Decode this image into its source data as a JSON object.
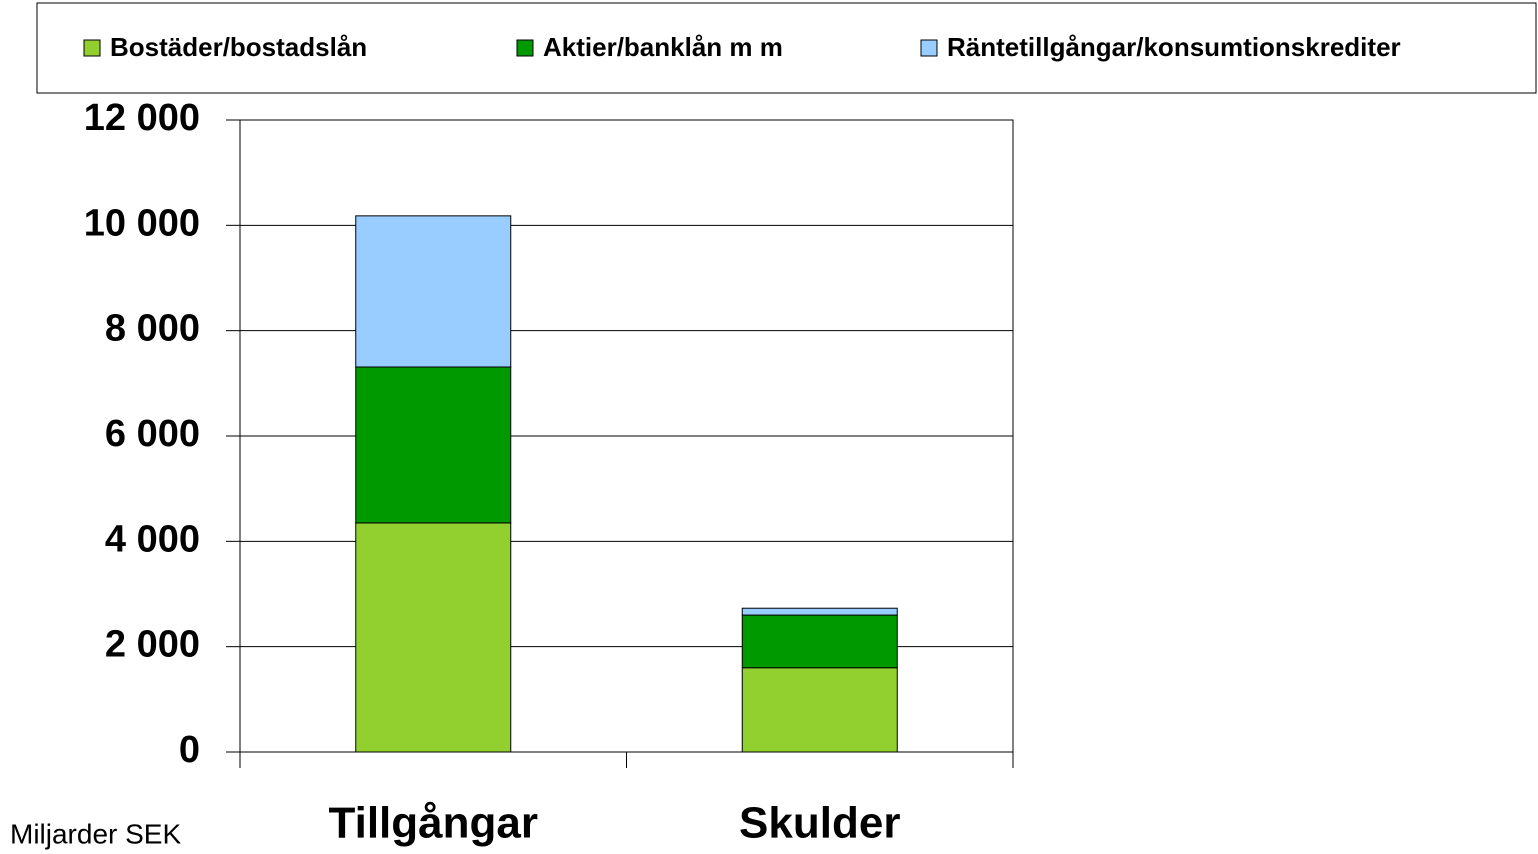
{
  "chart_data": {
    "type": "stacked_bar",
    "categories": [
      "Tillgångar",
      "Skulder"
    ],
    "series": [
      {
        "name": "Bostäder/bostadslån",
        "color": "#92d030",
        "values": [
          4350,
          1600
        ]
      },
      {
        "name": "Aktier/banklån m m",
        "color": "#009900",
        "values": [
          2960,
          1000
        ]
      },
      {
        "name": "Räntetillgångar/konsumtionskrediter",
        "color": "#99ccff",
        "values": [
          2870,
          130
        ]
      }
    ],
    "y_axis_label": "Miljarder SEK",
    "ylim": [
      0,
      12000
    ],
    "yticks": [
      0,
      {
        "value": 2000,
        "label": "2 000"
      },
      {
        "value": 4000,
        "label": "4 000"
      },
      {
        "value": 6000,
        "label": "6 000"
      },
      {
        "value": 8000,
        "label": "8 000"
      },
      {
        "value": 10000,
        "label": "10 000"
      },
      {
        "value": 12000,
        "label": "12 000"
      }
    ],
    "grid": true,
    "legend": "top"
  }
}
